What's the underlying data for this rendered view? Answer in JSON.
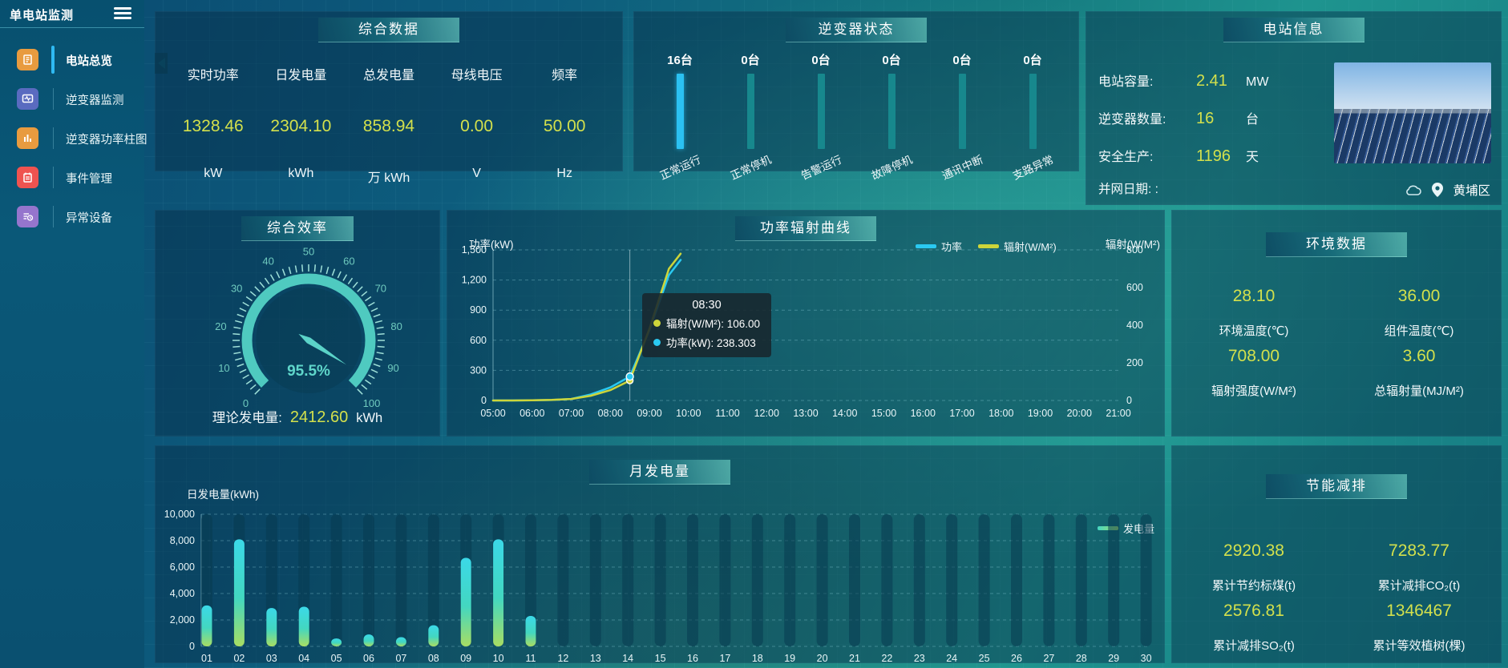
{
  "colors": {
    "accent_yellow": "#d3e04c",
    "accent_teal": "#4fcac0",
    "accent_blue": "#2bc1f2",
    "bar_teal": "#17888d",
    "line_cyan": "#2ac9f1",
    "line_yellow": "#cdd53a",
    "active_indicator": "#2fb9f2"
  },
  "sidebar": {
    "title": "单电站监测",
    "menu_icon": "hamburger-menu-icon",
    "items": [
      {
        "name": "station-overview",
        "label": "电站总览",
        "icon": "overview-icon",
        "color": "#e89b3f",
        "active": true
      },
      {
        "name": "inverter-monitoring",
        "label": "逆变器监测",
        "icon": "inverter-monitor-icon",
        "color": "#5a6bc0",
        "active": false
      },
      {
        "name": "inverter-power-bars",
        "label": "逆变器功率柱图",
        "icon": "bar-chart-icon",
        "color": "#e89b3f",
        "active": false
      },
      {
        "name": "event-management",
        "label": "事件管理",
        "icon": "event-notebook-icon",
        "color": "#ef5350",
        "active": false
      },
      {
        "name": "abnormal-devices",
        "label": "异常设备",
        "icon": "abnormal-device-icon",
        "color": "#9575cd",
        "active": false
      }
    ]
  },
  "overview": {
    "title": "综合数据",
    "metrics": [
      {
        "label": "实时功率",
        "value": "1328.46",
        "unit": "kW"
      },
      {
        "label": "日发电量",
        "value": "2304.10",
        "unit": "kWh"
      },
      {
        "label": "总发电量",
        "value": "858.94",
        "unit": "万 kWh"
      },
      {
        "label": "母线电压",
        "value": "0.00",
        "unit": "V"
      },
      {
        "label": "频率",
        "value": "50.00",
        "unit": "Hz"
      }
    ]
  },
  "inverter_status": {
    "title": "逆变器状态",
    "items": [
      {
        "count": "16台",
        "label": "正常运行",
        "highlight": true
      },
      {
        "count": "0台",
        "label": "正常停机",
        "highlight": false
      },
      {
        "count": "0台",
        "label": "告警运行",
        "highlight": false
      },
      {
        "count": "0台",
        "label": "故障停机",
        "highlight": false
      },
      {
        "count": "0台",
        "label": "通讯中断",
        "highlight": false
      },
      {
        "count": "0台",
        "label": "支路异常",
        "highlight": false
      }
    ]
  },
  "station_info": {
    "title": "电站信息",
    "rows": [
      {
        "label": "电站容量:",
        "value": "2.41",
        "unit": "MW"
      },
      {
        "label": "逆变器数量:",
        "value": "16",
        "unit": "台"
      },
      {
        "label": "安全生产:",
        "value": "1196",
        "unit": "天"
      }
    ],
    "grid_date_label": "并网日期: :",
    "weather_icon": "cloud-icon",
    "location_icon": "location-pin-icon",
    "district": "黄埔区"
  },
  "efficiency": {
    "title": "综合效率",
    "value_label": "95.5%",
    "theory_label": "理论发电量:",
    "theory_value": "2412.60",
    "theory_unit": "kWh",
    "scale_ticks": [
      "0",
      "10",
      "20",
      "30",
      "40",
      "50",
      "60",
      "70",
      "80",
      "90",
      "100"
    ]
  },
  "power_curve": {
    "title": "功率辐射曲线",
    "y_left_label": "功率(kW)",
    "y_right_label": "辐射(W/M²)",
    "y_left_ticks": [
      "1,500",
      "1,200",
      "900",
      "600",
      "300",
      "0"
    ],
    "y_right_ticks": [
      "800",
      "600",
      "400",
      "200",
      "0"
    ],
    "x_ticks": [
      "05:00",
      "06:00",
      "07:00",
      "08:00",
      "09:00",
      "10:00",
      "11:00",
      "12:00",
      "13:00",
      "14:00",
      "15:00",
      "16:00",
      "17:00",
      "18:00",
      "19:00",
      "20:00",
      "21:00"
    ],
    "legend": [
      {
        "label": "功率",
        "color": "#2ac9f1"
      },
      {
        "label": "辐射(W/M²)",
        "color": "#cdd53a"
      }
    ],
    "tooltip": {
      "time": "08:30",
      "rows": [
        {
          "label": "辐射(W/M²)",
          "value": "106.00",
          "color": "#cdd53a"
        },
        {
          "label": "功率(kW)",
          "value": "238.303",
          "color": "#2ac9f1"
        }
      ]
    }
  },
  "environment": {
    "title": "环境数据",
    "items": [
      {
        "value": "28.10",
        "label": "环境温度(℃)"
      },
      {
        "value": "36.00",
        "label": "组件温度(℃)"
      },
      {
        "value": "708.00",
        "label": "辐射强度(W/M²)"
      },
      {
        "value": "3.60",
        "label": "总辐射量(MJ/M²)"
      }
    ]
  },
  "monthly": {
    "title": "月发电量",
    "axis_label": "日发电量(kWh)",
    "legend_label": "发电量",
    "y_ticks": [
      "10,000",
      "8,000",
      "6,000",
      "4,000",
      "2,000",
      "0"
    ]
  },
  "saving": {
    "title": "节能减排",
    "items": [
      {
        "value": "2920.38",
        "label": "累计节约标煤(t)"
      },
      {
        "value": "7283.77",
        "label": "累计减排CO₂(t)"
      },
      {
        "value": "2576.81",
        "label": "累计减排SO₂(t)"
      },
      {
        "value": "1346467",
        "label": "累计等效植树(棵)"
      }
    ]
  },
  "chart_data": [
    {
      "id": "inverter_status",
      "type": "bar",
      "title": "逆变器状态",
      "categories": [
        "正常运行",
        "正常停机",
        "告警运行",
        "故障停机",
        "通讯中断",
        "支路异常"
      ],
      "values": [
        16,
        0,
        0,
        0,
        0,
        0
      ],
      "unit": "台"
    },
    {
      "id": "efficiency_gauge",
      "type": "gauge",
      "title": "综合效率",
      "value": 95.5,
      "min": 0,
      "max": 100,
      "unit": "%"
    },
    {
      "id": "power_radiation_curve",
      "type": "line",
      "title": "功率辐射曲线",
      "x_hours": [
        5,
        5.5,
        6,
        6.5,
        7,
        7.5,
        8,
        8.5,
        9,
        9.5,
        9.8
      ],
      "series": [
        {
          "name": "功率",
          "axis": "left",
          "color": "#2ac9f1",
          "values": [
            0,
            0,
            2,
            5,
            15,
            60,
            130,
            238.303,
            700,
            1250,
            1400
          ]
        },
        {
          "name": "辐射(W/M²)",
          "axis": "right",
          "color": "#cdd53a",
          "values": [
            0,
            0,
            1,
            3,
            8,
            25,
            55,
            106,
            380,
            700,
            780
          ]
        }
      ],
      "ylim_left": [
        0,
        1500
      ],
      "ylim_right": [
        0,
        800
      ],
      "xlabel": "",
      "ylabel_left": "功率(kW)",
      "ylabel_right": "辐射(W/M²)",
      "marked_point": {
        "x_hour": 8.5,
        "power": 238.303,
        "radiation": 106.0
      }
    },
    {
      "id": "monthly_generation",
      "type": "bar",
      "title": "月发电量",
      "ylabel": "日发电量(kWh)",
      "ylim": [
        0,
        10000
      ],
      "categories": [
        "01",
        "02",
        "03",
        "04",
        "05",
        "06",
        "07",
        "08",
        "09",
        "10",
        "11",
        "12",
        "13",
        "14",
        "15",
        "16",
        "17",
        "18",
        "19",
        "20",
        "21",
        "22",
        "23",
        "24",
        "25",
        "26",
        "27",
        "28",
        "29",
        "30"
      ],
      "values": [
        3100,
        8100,
        2900,
        3000,
        600,
        900,
        700,
        1600,
        6700,
        8100,
        2300,
        0,
        0,
        0,
        0,
        0,
        0,
        0,
        0,
        0,
        0,
        0,
        0,
        0,
        0,
        0,
        0,
        0,
        0,
        0
      ],
      "legend": "发电量"
    }
  ]
}
